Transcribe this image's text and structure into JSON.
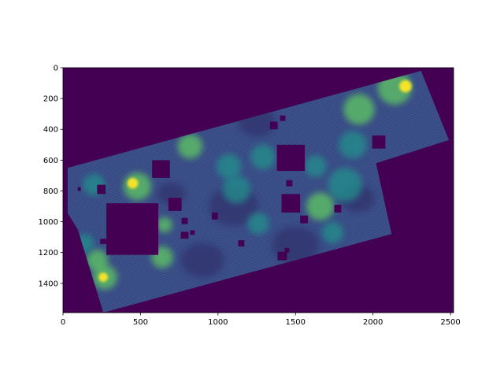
{
  "chart_data": {
    "type": "heatmap",
    "title": "",
    "xlabel": "",
    "ylabel": "",
    "xlim": [
      0,
      2520
    ],
    "ylim": [
      1590,
      0
    ],
    "xticks": [
      0,
      500,
      1000,
      1500,
      2000,
      2500
    ],
    "yticks": [
      0,
      200,
      400,
      600,
      800,
      1000,
      1200,
      1400
    ],
    "colormap": "viridis",
    "colors": {
      "background": "#440154",
      "low": "#3b528b",
      "mid": "#21918c",
      "high": "#5ec962",
      "peak": "#fde725"
    },
    "data_footprint": [
      [
        30,
        650
      ],
      [
        2310,
        20
      ],
      [
        2490,
        470
      ],
      [
        2020,
        620
      ],
      [
        2120,
        1080
      ],
      [
        260,
        1590
      ],
      [
        95,
        1050
      ],
      [
        30,
        945
      ]
    ],
    "masked_regions": [
      {
        "x": [
          280,
          615
        ],
        "y": [
          880,
          1215
        ]
      },
      {
        "x": [
          1380,
          1560
        ],
        "y": [
          500,
          670
        ]
      },
      {
        "x": [
          575,
          690
        ],
        "y": [
          600,
          715
        ]
      },
      {
        "x": [
          1995,
          2080
        ],
        "y": [
          440,
          525
        ]
      },
      {
        "x": [
          1410,
          1530
        ],
        "y": [
          820,
          940
        ]
      },
      {
        "x": [
          680,
          765
        ],
        "y": [
          845,
          930
        ]
      },
      {
        "x": [
          220,
          275
        ],
        "y": [
          760,
          820
        ]
      },
      {
        "x": [
          1335,
          1385
        ],
        "y": [
          350,
          400
        ]
      },
      {
        "x": [
          1385,
          1445
        ],
        "y": [
          1195,
          1250
        ]
      },
      {
        "x": [
          1530,
          1580
        ],
        "y": [
          960,
          1010
        ]
      },
      {
        "x": [
          760,
          810
        ],
        "y": [
          1065,
          1110
        ]
      },
      {
        "x": [
          1750,
          1795
        ],
        "y": [
          890,
          940
        ]
      },
      {
        "x": [
          1400,
          1435
        ],
        "y": [
          310,
          345
        ]
      },
      {
        "x": [
          1440,
          1480
        ],
        "y": [
          730,
          770
        ]
      },
      {
        "x": [
          960,
          1000
        ],
        "y": [
          940,
          985
        ]
      },
      {
        "x": [
          1130,
          1170
        ],
        "y": [
          1120,
          1160
        ]
      },
      {
        "x": [
          765,
          805
        ],
        "y": [
          975,
          1015
        ]
      },
      {
        "x": [
          1430,
          1460
        ],
        "y": [
          1170,
          1200
        ]
      },
      {
        "x": [
          820,
          850
        ],
        "y": [
          1055,
          1085
        ]
      },
      {
        "x": [
          95,
          115
        ],
        "y": [
          775,
          800
        ]
      },
      {
        "x": [
          240,
          280
        ],
        "y": [
          1110,
          1145
        ]
      }
    ],
    "bright_regions": [
      {
        "x": 2140,
        "y": 130,
        "r": 110,
        "level": "high"
      },
      {
        "x": 2210,
        "y": 120,
        "r": 40,
        "level": "peak"
      },
      {
        "x": 1910,
        "y": 270,
        "r": 100,
        "level": "high"
      },
      {
        "x": 1870,
        "y": 500,
        "r": 90,
        "level": "mid"
      },
      {
        "x": 1820,
        "y": 760,
        "r": 110,
        "level": "mid"
      },
      {
        "x": 1660,
        "y": 900,
        "r": 90,
        "level": "high"
      },
      {
        "x": 1120,
        "y": 790,
        "r": 90,
        "level": "mid"
      },
      {
        "x": 1070,
        "y": 640,
        "r": 80,
        "level": "mid"
      },
      {
        "x": 820,
        "y": 510,
        "r": 80,
        "level": "high"
      },
      {
        "x": 480,
        "y": 770,
        "r": 90,
        "level": "high"
      },
      {
        "x": 450,
        "y": 750,
        "r": 35,
        "level": "peak"
      },
      {
        "x": 200,
        "y": 760,
        "r": 70,
        "level": "mid"
      },
      {
        "x": 220,
        "y": 1250,
        "r": 70,
        "level": "high"
      },
      {
        "x": 270,
        "y": 1360,
        "r": 80,
        "level": "high"
      },
      {
        "x": 260,
        "y": 1360,
        "r": 30,
        "level": "peak"
      },
      {
        "x": 640,
        "y": 1230,
        "r": 70,
        "level": "high"
      },
      {
        "x": 655,
        "y": 1020,
        "r": 50,
        "level": "high"
      },
      {
        "x": 140,
        "y": 1140,
        "r": 60,
        "level": "mid"
      },
      {
        "x": 1260,
        "y": 1010,
        "r": 70,
        "level": "mid"
      },
      {
        "x": 1740,
        "y": 1070,
        "r": 70,
        "level": "mid"
      },
      {
        "x": 1290,
        "y": 580,
        "r": 80,
        "level": "mid"
      },
      {
        "x": 1630,
        "y": 640,
        "r": 70,
        "level": "mid"
      }
    ]
  }
}
